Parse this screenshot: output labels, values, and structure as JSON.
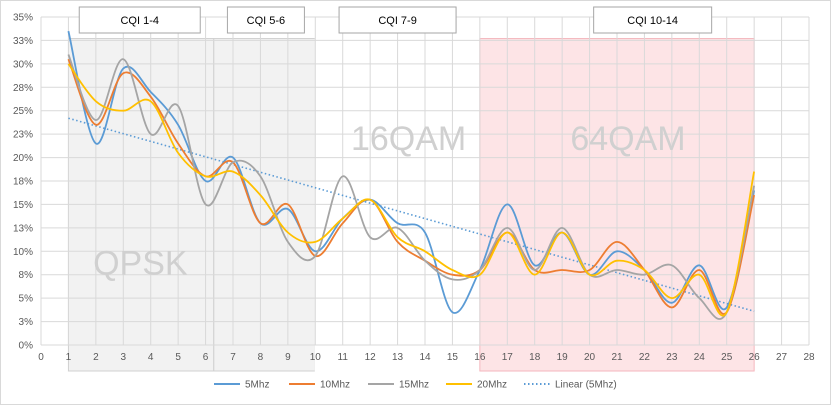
{
  "chart_data": {
    "type": "line",
    "xlim": [
      0,
      28
    ],
    "ylim": [
      0,
      35
    ],
    "x_ticks": [
      0,
      1,
      2,
      3,
      4,
      5,
      6,
      7,
      8,
      9,
      10,
      11,
      12,
      13,
      14,
      15,
      16,
      17,
      18,
      19,
      20,
      21,
      22,
      23,
      24,
      25,
      26,
      27,
      28
    ],
    "y_ticks": [
      {
        "value": 0,
        "label": "0%"
      },
      {
        "value": 2.5,
        "label": "3%"
      },
      {
        "value": 5,
        "label": "5%"
      },
      {
        "value": 7.5,
        "label": "8%"
      },
      {
        "value": 10,
        "label": "10%"
      },
      {
        "value": 12.5,
        "label": "13%"
      },
      {
        "value": 15,
        "label": "15%"
      },
      {
        "value": 17.5,
        "label": "18%"
      },
      {
        "value": 20,
        "label": "20%"
      },
      {
        "value": 22.5,
        "label": "23%"
      },
      {
        "value": 25,
        "label": "25%"
      },
      {
        "value": 27.5,
        "label": "28%"
      },
      {
        "value": 30,
        "label": "30%"
      },
      {
        "value": 32.5,
        "label": "33%"
      },
      {
        "value": 35,
        "label": "35%"
      }
    ],
    "grid": true,
    "legend_position": "bottom",
    "regions": [
      {
        "label": "CQI 1-4",
        "x_start": 1,
        "x_end": 6.3,
        "color": "#f2f2f2",
        "modulation": "QPSK"
      },
      {
        "label": "CQI 5-6",
        "x_start": 6.3,
        "x_end": 10,
        "color": "#f2f2f2",
        "modulation": ""
      },
      {
        "label": "CQI 7-9",
        "x_start": 10,
        "x_end": 16,
        "color": "#ffffff",
        "modulation": "16QAM"
      },
      {
        "label": "CQI 10-14",
        "x_start": 16,
        "x_end": 26,
        "color": "#fde4e6",
        "modulation": "64QAM"
      }
    ],
    "modulation_labels": {
      "qpsk": "QPSK",
      "qam16": "16QAM",
      "qam64": "64QAM"
    },
    "x": [
      1,
      2,
      3,
      4,
      5,
      6,
      7,
      8,
      9,
      10,
      11,
      12,
      13,
      14,
      15,
      16,
      17,
      18,
      19,
      20,
      21,
      22,
      23,
      24,
      25,
      26
    ],
    "series": [
      {
        "name": "5Mhz",
        "color": "#5b9bd5",
        "values": [
          33.5,
          21.5,
          29.5,
          27,
          23.5,
          17.5,
          20,
          13,
          14.5,
          10,
          13.5,
          15.5,
          13,
          12,
          3.5,
          8,
          15,
          8.5,
          12,
          7.5,
          10,
          8,
          4.5,
          8.5,
          4,
          16.5
        ]
      },
      {
        "name": "10Mhz",
        "color": "#ed7d31",
        "values": [
          30.5,
          23.5,
          29,
          26.5,
          21.5,
          18,
          19.5,
          13,
          15,
          9.5,
          13,
          15.5,
          11,
          9,
          7.5,
          8,
          12,
          8,
          8,
          8,
          11,
          8,
          4,
          8,
          3.5,
          16
        ]
      },
      {
        "name": "15Mhz",
        "color": "#a5a5a5",
        "values": [
          31,
          24,
          30.5,
          22.5,
          25.5,
          15,
          19.5,
          18,
          11,
          9.5,
          18,
          11.5,
          12.5,
          9,
          7,
          8,
          12.5,
          8,
          12.5,
          7.5,
          8,
          7.5,
          8.5,
          5,
          3.5,
          17
        ]
      },
      {
        "name": "20Mhz",
        "color": "#ffc000",
        "values": [
          30,
          26,
          25,
          26,
          20.5,
          18,
          18.5,
          16,
          12,
          11,
          13.5,
          15.5,
          11.5,
          10,
          8,
          7.5,
          12,
          7.5,
          12,
          7.5,
          9,
          8,
          5,
          7.5,
          3.5,
          18.5
        ]
      }
    ],
    "trendline": {
      "name": "Linear (5Mhz)",
      "color": "#5b9bd5",
      "x": [
        1,
        26
      ],
      "values": [
        24.2,
        3.6
      ]
    }
  }
}
